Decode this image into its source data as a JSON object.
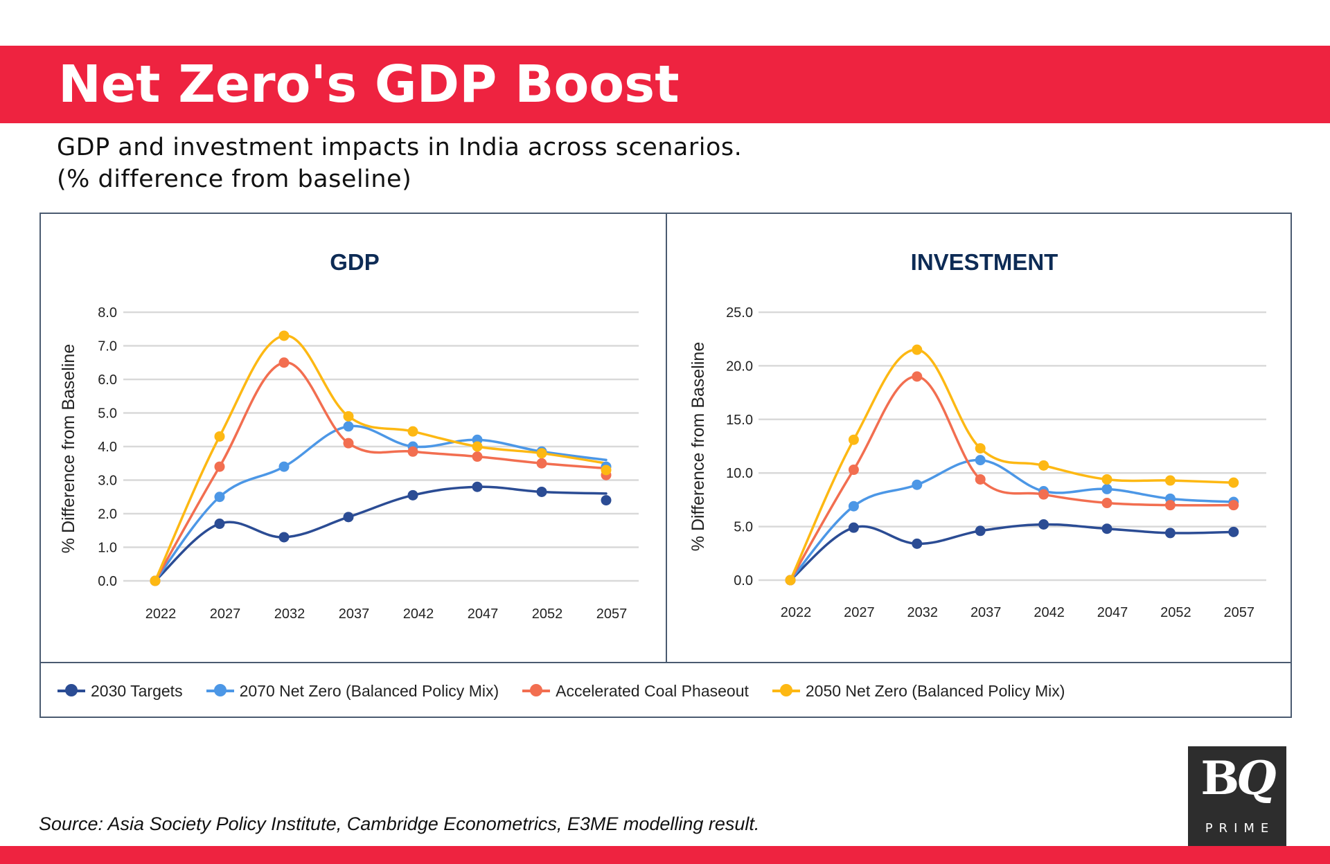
{
  "header": {
    "title": "Net Zero's GDP Boost",
    "subtitle_line1": "GDP and investment impacts in India across scenarios.",
    "subtitle_line2": "(% difference from baseline)"
  },
  "colors": {
    "brand_red": "#EE2340",
    "chart_title": "#0D2B55",
    "gridline": "#D9D9D9",
    "frame": "#4A5A70"
  },
  "legend": [
    {
      "name": "2030 Targets",
      "color": "#2B4C94"
    },
    {
      "name": "2070 Net Zero (Balanced Policy Mix)",
      "color": "#4C97E6"
    },
    {
      "name": "Accelerated Coal Phaseout",
      "color": "#F26E50"
    },
    {
      "name": "2050 Net Zero (Balanced Policy Mix)",
      "color": "#FDB813"
    }
  ],
  "chart_data": [
    {
      "type": "line",
      "title": "GDP",
      "xlabel": "",
      "ylabel": "% Difference from Baseline",
      "categories": [
        "2022",
        "2027",
        "2032",
        "2037",
        "2042",
        "2047",
        "2052",
        "2057"
      ],
      "yticks": [
        "0.0",
        "1.0",
        "2.0",
        "3.0",
        "4.0",
        "5.0",
        "6.0",
        "7.0",
        "8.0"
      ],
      "ylim": [
        0,
        8
      ],
      "grid": true,
      "smooth": true,
      "legend_position": "bottom",
      "series": [
        {
          "name": "2030 Targets",
          "color": "#2B4C94",
          "values": [
            0.0,
            1.7,
            1.3,
            1.9,
            2.55,
            2.8,
            2.65,
            2.4
          ],
          "line_end_value": 2.6
        },
        {
          "name": "2070 Net Zero (Balanced Policy Mix)",
          "color": "#4C97E6",
          "values": [
            0.0,
            2.5,
            3.4,
            4.6,
            4.0,
            4.2,
            3.85,
            3.4
          ],
          "line_end_value": 3.6
        },
        {
          "name": "Accelerated Coal Phaseout",
          "color": "#F26E50",
          "values": [
            0.0,
            3.4,
            6.5,
            4.1,
            3.85,
            3.7,
            3.5,
            3.15
          ],
          "line_end_value": 3.35
        },
        {
          "name": "2050 Net Zero (Balanced Policy Mix)",
          "color": "#FDB813",
          "values": [
            0.0,
            4.3,
            7.3,
            4.9,
            4.45,
            4.0,
            3.8,
            3.3
          ],
          "line_end_value": 3.5
        }
      ]
    },
    {
      "type": "line",
      "title": "INVESTMENT",
      "xlabel": "",
      "ylabel": "% Difference from Baseline",
      "categories": [
        "2022",
        "2027",
        "2032",
        "2037",
        "2042",
        "2047",
        "2052",
        "2057"
      ],
      "yticks": [
        "0.0",
        "5.0",
        "10.0",
        "15.0",
        "20.0",
        "25.0"
      ],
      "ylim": [
        0,
        25
      ],
      "grid": true,
      "smooth": true,
      "legend_position": "bottom",
      "series": [
        {
          "name": "2030 Targets",
          "color": "#2B4C94",
          "values": [
            0.0,
            4.9,
            3.4,
            4.6,
            5.2,
            4.8,
            4.4,
            4.5
          ]
        },
        {
          "name": "2070 Net Zero (Balanced Policy Mix)",
          "color": "#4C97E6",
          "values": [
            0.0,
            6.9,
            8.9,
            11.2,
            8.3,
            8.5,
            7.6,
            7.3
          ]
        },
        {
          "name": "Accelerated Coal Phaseout",
          "color": "#F26E50",
          "values": [
            0.0,
            10.3,
            19.0,
            9.4,
            8.0,
            7.2,
            7.0,
            7.0
          ]
        },
        {
          "name": "2050 Net Zero (Balanced Policy Mix)",
          "color": "#FDB813",
          "values": [
            0.0,
            13.1,
            21.5,
            12.3,
            10.7,
            9.4,
            9.3,
            9.1
          ]
        }
      ]
    }
  ],
  "footer": {
    "source": "Source: Asia Society Policy Institute, Cambridge Econometrics, E3ME modelling result.",
    "logo_main": "BQ",
    "logo_sub": "PRIME"
  }
}
